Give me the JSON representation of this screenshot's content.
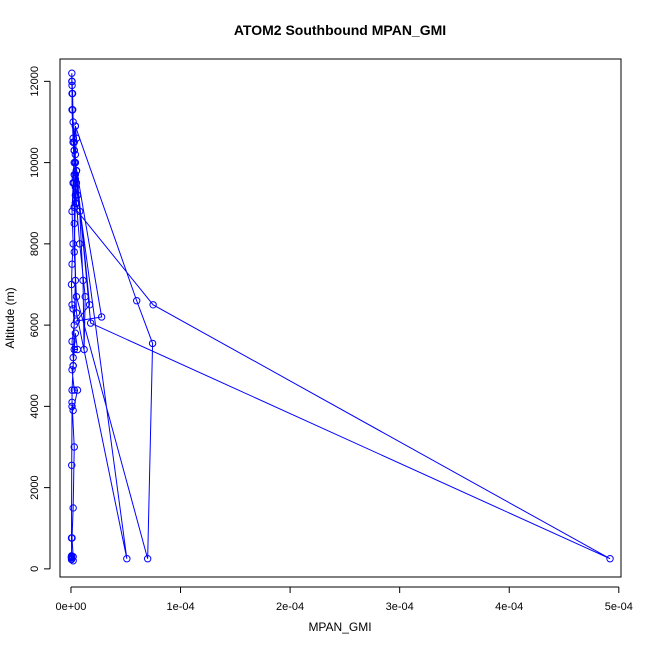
{
  "chart_data": {
    "type": "line",
    "title": "ATOM2 Southbound MPAN_GMI",
    "xlabel": "MPAN_GMI",
    "ylabel": "Altitude (m)",
    "xlim": [
      -1e-05,
      0.000502
    ],
    "ylim": [
      -200,
      12550
    ],
    "x_ticks": [
      {
        "value": 0,
        "label": "0e+00"
      },
      {
        "value": 0.0001,
        "label": "1e-04"
      },
      {
        "value": 0.0002,
        "label": "2e-04"
      },
      {
        "value": 0.0003,
        "label": "3e-04"
      },
      {
        "value": 0.0004,
        "label": "4e-04"
      },
      {
        "value": 0.0005,
        "label": "5e-04"
      }
    ],
    "y_ticks": [
      {
        "value": 0,
        "label": "0"
      },
      {
        "value": 2000,
        "label": "2000"
      },
      {
        "value": 4000,
        "label": "4000"
      },
      {
        "value": 6000,
        "label": "6000"
      },
      {
        "value": 8000,
        "label": "8000"
      },
      {
        "value": 10000,
        "label": "10000"
      },
      {
        "value": 12000,
        "label": "12000"
      }
    ],
    "series_color": "#0000ff",
    "marker": "open-circle",
    "points": [
      [
        5e-07,
        300
      ],
      [
        6e-07,
        250
      ],
      [
        5e-07,
        230
      ],
      [
        4e-07,
        280
      ],
      [
        6e-07,
        320
      ],
      [
        5e-07,
        760
      ],
      [
        7e-07,
        2550
      ],
      [
        1e-06,
        4000
      ],
      [
        1e-06,
        4400
      ],
      [
        2e-06,
        5000
      ],
      [
        4e-06,
        7100
      ],
      [
        3e-06,
        8900
      ],
      [
        2e-06,
        9500
      ],
      [
        3e-06,
        9700
      ],
      [
        4e-06,
        10000
      ],
      [
        3e-06,
        10300
      ],
      [
        2e-06,
        10600
      ],
      [
        1.5e-06,
        11300
      ],
      [
        1e-06,
        11700
      ],
      [
        8e-07,
        12000
      ],
      [
        8e-07,
        12200
      ],
      [
        1e-06,
        11900
      ],
      [
        1.5e-06,
        11300
      ],
      [
        2e-06,
        10500
      ],
      [
        3e-06,
        10000
      ],
      [
        5e-06,
        9800
      ],
      [
        4e-06,
        9400
      ],
      [
        6e-06,
        9200
      ],
      [
        8e-06,
        8800
      ],
      [
        1.1e-05,
        7100
      ],
      [
        1.2e-05,
        5400
      ],
      [
        1.3e-05,
        6700
      ],
      [
        8e-06,
        8000
      ],
      [
        5e-06,
        9000
      ],
      [
        4e-06,
        9700
      ],
      [
        4e-06,
        10200
      ],
      [
        5e-06,
        10600
      ],
      [
        4e-06,
        10900
      ],
      [
        6e-05,
        6600
      ],
      [
        7.45e-05,
        5550
      ],
      [
        7e-05,
        250
      ],
      [
        5e-06,
        6700
      ],
      [
        3e-06,
        7800
      ],
      [
        4e-06,
        9000
      ],
      [
        4e-06,
        9600
      ],
      [
        5e-06,
        9800
      ],
      [
        1.8e-05,
        6050
      ],
      [
        0.000492,
        250
      ],
      [
        7.5e-05,
        6500
      ],
      [
        3e-06,
        8900
      ],
      [
        3e-06,
        9500
      ],
      [
        5e-06,
        9800
      ],
      [
        5e-06,
        9500
      ],
      [
        5.1e-05,
        250
      ],
      [
        5e-06,
        6300
      ],
      [
        3e-06,
        8500
      ],
      [
        4e-06,
        9200
      ],
      [
        4e-06,
        10000
      ],
      [
        2.8e-05,
        6200
      ],
      [
        5e-06,
        6100
      ],
      [
        1.7e-05,
        6500
      ],
      [
        5e-06,
        9800
      ],
      [
        3e-06,
        10500
      ],
      [
        2e-06,
        11000
      ],
      [
        1.5e-06,
        11700
      ],
      [
        1e-06,
        12000
      ],
      [
        1e-06,
        11300
      ],
      [
        2e-06,
        10500
      ],
      [
        4e-06,
        10900
      ],
      [
        3e-06,
        10300
      ],
      [
        2e-06,
        9500
      ],
      [
        1e-06,
        8800
      ],
      [
        2e-06,
        8000
      ],
      [
        1e-06,
        7500
      ],
      [
        5e-07,
        7000
      ],
      [
        1e-06,
        6500
      ],
      [
        2e-06,
        6400
      ],
      [
        3e-06,
        6000
      ],
      [
        1e-06,
        5600
      ],
      [
        2e-06,
        5200
      ],
      [
        3e-06,
        5400
      ],
      [
        6e-06,
        5400
      ],
      [
        4e-06,
        5800
      ],
      [
        2e-06,
        5000
      ],
      [
        1e-06,
        4900
      ],
      [
        3e-06,
        4400
      ],
      [
        6e-06,
        4400
      ],
      [
        2e-06,
        3900
      ],
      [
        1e-06,
        4100
      ],
      [
        3e-06,
        3000
      ],
      [
        2e-06,
        1500
      ],
      [
        1e-06,
        760
      ],
      [
        2e-06,
        300
      ],
      [
        2e-06,
        200
      ],
      [
        5e-07,
        300
      ]
    ]
  }
}
